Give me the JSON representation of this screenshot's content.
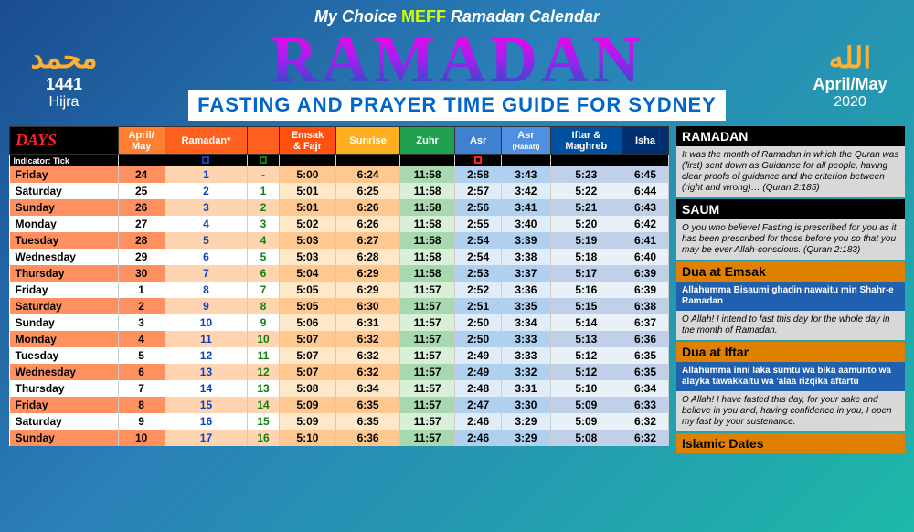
{
  "header": {
    "prefix": "My Choice",
    "meff": "MEFF",
    "suffix": "Ramadan Calendar"
  },
  "title": "RAMADAN",
  "subtitle": "FASTING AND PRAYER TIME GUIDE FOR SYDNEY",
  "left_badge": {
    "arabic": "محمد",
    "year": "1441",
    "label": "Hijra"
  },
  "right_badge": {
    "arabic": "الله",
    "year": "April/May",
    "label": "2020"
  },
  "columns": [
    "DAYS",
    "April/\nMay",
    "Ramadan*",
    "",
    "Emsak\n& Fajr",
    "Sunrise",
    "Zuhr",
    "Asr",
    "Asr\n(Hanafi)",
    "Iftar &\nMaghreb",
    "Isha"
  ],
  "indicator_label": "Indicator: Tick",
  "rows": [
    {
      "day": "Friday",
      "apr": "24",
      "r1": "1",
      "r2": "-",
      "emsak": "5:00",
      "sun": "6:24",
      "zuhr": "11:58",
      "asr": "2:58",
      "asrh": "3:43",
      "iftar": "5:23",
      "isha": "6:45",
      "sh": true
    },
    {
      "day": "Saturday",
      "apr": "25",
      "r1": "2",
      "r2": "1",
      "emsak": "5:01",
      "sun": "6:25",
      "zuhr": "11:58",
      "asr": "2:57",
      "asrh": "3:42",
      "iftar": "5:22",
      "isha": "6:44",
      "sh": false
    },
    {
      "day": "Sunday",
      "apr": "26",
      "r1": "3",
      "r2": "2",
      "emsak": "5:01",
      "sun": "6:26",
      "zuhr": "11:58",
      "asr": "2:56",
      "asrh": "3:41",
      "iftar": "5:21",
      "isha": "6:43",
      "sh": true
    },
    {
      "day": "Monday",
      "apr": "27",
      "r1": "4",
      "r2": "3",
      "emsak": "5:02",
      "sun": "6:26",
      "zuhr": "11:58",
      "asr": "2:55",
      "asrh": "3:40",
      "iftar": "5:20",
      "isha": "6:42",
      "sh": false
    },
    {
      "day": "Tuesday",
      "apr": "28",
      "r1": "5",
      "r2": "4",
      "emsak": "5:03",
      "sun": "6:27",
      "zuhr": "11:58",
      "asr": "2:54",
      "asrh": "3:39",
      "iftar": "5:19",
      "isha": "6:41",
      "sh": true
    },
    {
      "day": "Wednesday",
      "apr": "29",
      "r1": "6",
      "r2": "5",
      "emsak": "5:03",
      "sun": "6:28",
      "zuhr": "11:58",
      "asr": "2:54",
      "asrh": "3:38",
      "iftar": "5:18",
      "isha": "6:40",
      "sh": false
    },
    {
      "day": "Thursday",
      "apr": "30",
      "r1": "7",
      "r2": "6",
      "emsak": "5:04",
      "sun": "6:29",
      "zuhr": "11:58",
      "asr": "2:53",
      "asrh": "3:37",
      "iftar": "5:17",
      "isha": "6:39",
      "sh": true
    },
    {
      "day": "Friday",
      "apr": "1",
      "r1": "8",
      "r2": "7",
      "emsak": "5:05",
      "sun": "6:29",
      "zuhr": "11:57",
      "asr": "2:52",
      "asrh": "3:36",
      "iftar": "5:16",
      "isha": "6:39",
      "sh": false
    },
    {
      "day": "Saturday",
      "apr": "2",
      "r1": "9",
      "r2": "8",
      "emsak": "5:05",
      "sun": "6:30",
      "zuhr": "11:57",
      "asr": "2:51",
      "asrh": "3:35",
      "iftar": "5:15",
      "isha": "6:38",
      "sh": true
    },
    {
      "day": "Sunday",
      "apr": "3",
      "r1": "10",
      "r2": "9",
      "emsak": "5:06",
      "sun": "6:31",
      "zuhr": "11:57",
      "asr": "2:50",
      "asrh": "3:34",
      "iftar": "5:14",
      "isha": "6:37",
      "sh": false
    },
    {
      "day": "Monday",
      "apr": "4",
      "r1": "11",
      "r2": "10",
      "emsak": "5:07",
      "sun": "6:32",
      "zuhr": "11:57",
      "asr": "2:50",
      "asrh": "3:33",
      "iftar": "5:13",
      "isha": "6:36",
      "sh": true
    },
    {
      "day": "Tuesday",
      "apr": "5",
      "r1": "12",
      "r2": "11",
      "emsak": "5:07",
      "sun": "6:32",
      "zuhr": "11:57",
      "asr": "2:49",
      "asrh": "3:33",
      "iftar": "5:12",
      "isha": "6:35",
      "sh": false
    },
    {
      "day": "Wednesday",
      "apr": "6",
      "r1": "13",
      "r2": "12",
      "emsak": "5:07",
      "sun": "6:32",
      "zuhr": "11:57",
      "asr": "2:49",
      "asrh": "3:32",
      "iftar": "5:12",
      "isha": "6:35",
      "sh": true
    },
    {
      "day": "Thursday",
      "apr": "7",
      "r1": "14",
      "r2": "13",
      "emsak": "5:08",
      "sun": "6:34",
      "zuhr": "11:57",
      "asr": "2:48",
      "asrh": "3:31",
      "iftar": "5:10",
      "isha": "6:34",
      "sh": false
    },
    {
      "day": "Friday",
      "apr": "8",
      "r1": "15",
      "r2": "14",
      "emsak": "5:09",
      "sun": "6:35",
      "zuhr": "11:57",
      "asr": "2:47",
      "asrh": "3:30",
      "iftar": "5:09",
      "isha": "6:33",
      "sh": true
    },
    {
      "day": "Saturday",
      "apr": "9",
      "r1": "16",
      "r2": "15",
      "emsak": "5:09",
      "sun": "6:35",
      "zuhr": "11:57",
      "asr": "2:46",
      "asrh": "3:29",
      "iftar": "5:09",
      "isha": "6:32",
      "sh": false
    },
    {
      "day": "Sunday",
      "apr": "10",
      "r1": "17",
      "r2": "16",
      "emsak": "5:10",
      "sun": "6:36",
      "zuhr": "11:57",
      "asr": "2:46",
      "asrh": "3:29",
      "iftar": "5:08",
      "isha": "6:32",
      "sh": true
    }
  ],
  "side": [
    {
      "hdr": "RAMADAN",
      "hdrcls": "black",
      "blocks": [
        {
          "cls": "light",
          "txt": "It was the month of Ramadan in which the Quran was (first) sent down as Guidance for all people, having clear proofs of guidance and the criterion between (right and wrong)…\n(Quran 2:185)"
        }
      ]
    },
    {
      "hdr": "SAUM",
      "hdrcls": "black",
      "blocks": [
        {
          "cls": "light",
          "txt": "O you who believe! Fasting is prescribed for you as it has been prescribed for those before you so that you may be ever Allah-conscious.\n(Quran 2:183)"
        }
      ]
    },
    {
      "hdr": "Dua at Emsak",
      "hdrcls": "orange",
      "blocks": [
        {
          "cls": "blue",
          "txt": "Allahumma Bisaumi ghadin nawaitu min Shahr-e Ramadan"
        },
        {
          "cls": "light",
          "txt": "O Allah! I intend to fast this day for the whole day in the month of Ramadan."
        }
      ]
    },
    {
      "hdr": "Dua at Iftar",
      "hdrcls": "orange",
      "blocks": [
        {
          "cls": "blue",
          "txt": "Allahumma inni laka sumtu wa bika aamunto wa alayka tawakkaltu wa 'alaa rizqika aftartu"
        },
        {
          "cls": "light",
          "txt": "O Allah! I have fasted this day, for your sake and believe in you and, having confidence in you, I open my fast by your sustenance."
        }
      ]
    },
    {
      "hdr": "Islamic Dates",
      "hdrcls": "orange",
      "blocks": []
    }
  ]
}
